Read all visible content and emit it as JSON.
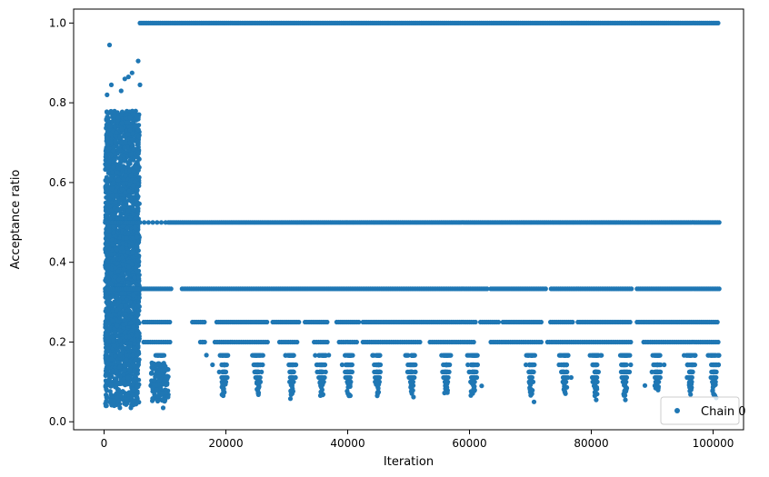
{
  "chart_data": {
    "type": "scatter",
    "title": "",
    "xlabel": "Iteration",
    "ylabel": "Acceptance ratio",
    "xlim": [
      -5000,
      105000
    ],
    "ylim": [
      -0.02,
      1.035
    ],
    "xticks": [
      0,
      20000,
      40000,
      60000,
      80000,
      100000
    ],
    "xtick_labels": [
      "0",
      "20000",
      "40000",
      "60000",
      "80000",
      "100000"
    ],
    "yticks": [
      0.0,
      0.2,
      0.4,
      0.6,
      0.8,
      1.0
    ],
    "ytick_labels": [
      "0.0",
      "0.2",
      "0.4",
      "0.6",
      "0.8",
      "1.0"
    ],
    "grid": false,
    "legend_position": "lower-right",
    "marker_color": "#1f77b4",
    "series": [
      {
        "name": "Chain 0",
        "burn_in_end_iteration": 5900,
        "x_range": [
          0,
          101000
        ],
        "burn_in_y_range": [
          0.03,
          0.95
        ],
        "post_burn_in_levels": [
          1.0,
          0.5,
          0.3333,
          0.25,
          0.2,
          0.1667,
          0.1429,
          0.125,
          0.1111,
          0.1
        ],
        "points": [
          {
            "x": 900,
            "y": 0.945
          },
          {
            "x": 5600,
            "y": 0.905
          },
          {
            "x": 4600,
            "y": 0.875
          },
          {
            "x": 4000,
            "y": 0.865
          },
          {
            "x": 3400,
            "y": 0.86
          },
          {
            "x": 1200,
            "y": 0.845
          },
          {
            "x": 5900,
            "y": 0.845
          },
          {
            "x": 2800,
            "y": 0.83
          },
          {
            "x": 500,
            "y": 0.82
          },
          {
            "x": 300,
            "y": 0.04
          },
          {
            "x": 1500,
            "y": 0.045
          },
          {
            "x": 2600,
            "y": 0.035
          },
          {
            "x": 4400,
            "y": 0.035
          },
          {
            "x": 9700,
            "y": 0.035
          },
          {
            "x": 30600,
            "y": 0.058
          },
          {
            "x": 50800,
            "y": 0.062
          },
          {
            "x": 70600,
            "y": 0.05
          },
          {
            "x": 80800,
            "y": 0.055
          },
          {
            "x": 85600,
            "y": 0.055
          },
          {
            "x": 100500,
            "y": 0.06
          },
          {
            "x": 16200,
            "y": 0.2
          },
          {
            "x": 17800,
            "y": 0.143
          },
          {
            "x": 16800,
            "y": 0.167
          },
          {
            "x": 36900,
            "y": 0.167
          },
          {
            "x": 62000,
            "y": 0.09
          },
          {
            "x": 74700,
            "y": 0.143
          },
          {
            "x": 76700,
            "y": 0.111
          },
          {
            "x": 88800,
            "y": 0.091
          },
          {
            "x": 90600,
            "y": 0.125
          }
        ]
      }
    ]
  }
}
